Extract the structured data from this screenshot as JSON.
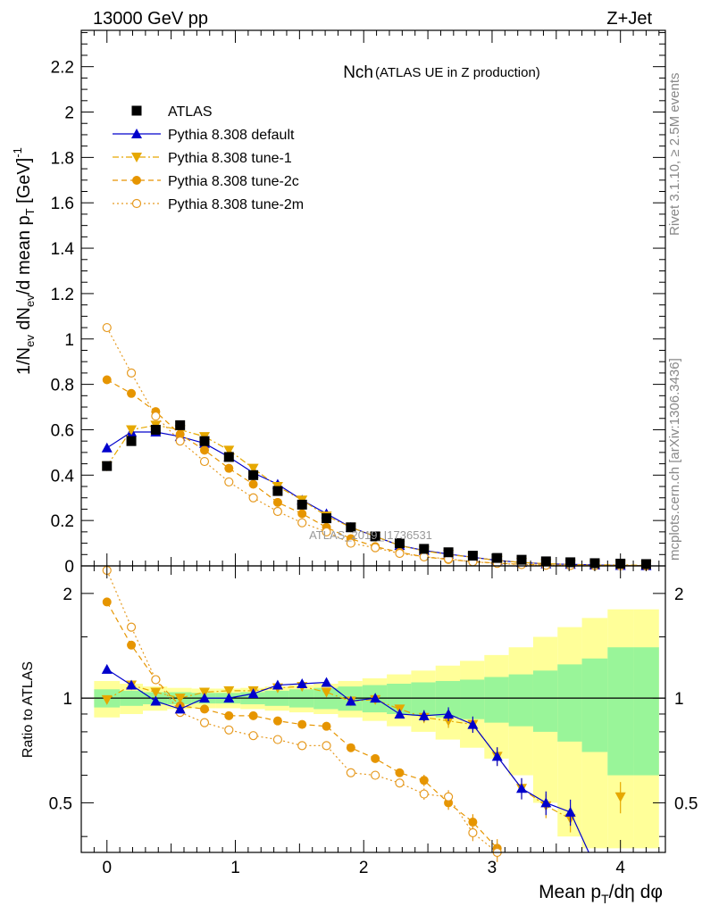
{
  "header": {
    "energy_label": "13000 GeV pp",
    "process_label": "Z+Jet"
  },
  "side_labels": {
    "rivet": "Rivet 3.1.10, ≥ 2.5M events",
    "mcplots": "mcplots.cern.ch [arXiv:1306.3436]"
  },
  "watermark": "ATLAS_2019_I1736531",
  "colors": {
    "atlas": "#000000",
    "default": "#0000cc",
    "tune1": "#e6a800",
    "tune2c": "#e69500",
    "tune2m": "#e69a20",
    "band_inner": "#99f599",
    "band_outer": "#ffff99"
  },
  "chart_data": [
    {
      "type": "scatter",
      "title": "Nch",
      "subtitle": "(ATLAS UE in Z production)",
      "ylabel": "1/N_ev dN_ev/d mean p_T [GeV]^-1",
      "xlim": [
        -0.2,
        4.35
      ],
      "ylim": [
        0,
        2.36
      ],
      "yticks": [
        0,
        0.2,
        0.4,
        0.6,
        0.8,
        1,
        1.2,
        1.4,
        1.6,
        1.8,
        2,
        2.2
      ],
      "ytick_labels": [
        "0",
        "0.2",
        "0.4",
        "0.6",
        "0.8",
        "1",
        "1.2",
        "1.4",
        "1.6",
        "1.8",
        "2",
        "2.2"
      ],
      "legend_position": "top-left",
      "x": [
        0,
        0.19,
        0.38,
        0.57,
        0.76,
        0.95,
        1.14,
        1.33,
        1.52,
        1.71,
        1.9,
        2.09,
        2.28,
        2.47,
        2.66,
        2.85,
        3.04,
        3.23,
        3.42,
        3.61,
        3.8,
        4.0,
        4.2
      ],
      "series": [
        {
          "name": "ATLAS",
          "marker": "square",
          "values": [
            0.44,
            0.55,
            0.6,
            0.62,
            0.55,
            0.48,
            0.4,
            0.33,
            0.27,
            0.21,
            0.17,
            0.13,
            0.1,
            0.075,
            0.06,
            0.045,
            0.035,
            0.027,
            0.02,
            0.016,
            0.012,
            0.01,
            0.008
          ]
        },
        {
          "name": "Pythia 8.308 default",
          "marker": "triangle-up",
          "line": "solid",
          "values": [
            0.52,
            0.59,
            0.59,
            0.57,
            0.54,
            0.48,
            0.41,
            0.36,
            0.29,
            0.23,
            0.17,
            0.13,
            0.09,
            0.068,
            0.052,
            0.038,
            0.024,
            0.015,
            0.009,
            0.007,
            0.004,
            0.002,
            0.001
          ]
        },
        {
          "name": "Pythia 8.308 tune-1",
          "marker": "triangle-down",
          "line": "dashdot",
          "values": [
            0.44,
            0.6,
            0.62,
            0.6,
            0.57,
            0.51,
            0.43,
            0.35,
            0.29,
            0.22,
            0.17,
            0.13,
            0.09,
            0.066,
            0.05,
            0.038,
            0.024,
            0.015,
            0.01,
            0.006,
            0.004,
            0.005,
            0.002
          ]
        },
        {
          "name": "Pythia 8.308 tune-2c",
          "marker": "circle",
          "line": "dashed",
          "values": [
            0.82,
            0.76,
            0.68,
            0.58,
            0.51,
            0.43,
            0.36,
            0.28,
            0.23,
            0.17,
            0.12,
            0.085,
            0.06,
            0.04,
            0.028,
            0.019,
            0.012,
            0.007,
            0.004,
            0.002,
            0.001,
            0.001,
            0.0005
          ]
        },
        {
          "name": "Pythia 8.308 tune-2m",
          "marker": "open-circle",
          "line": "dotted",
          "values": [
            1.05,
            0.85,
            0.66,
            0.55,
            0.46,
            0.37,
            0.3,
            0.24,
            0.19,
            0.15,
            0.1,
            0.08,
            0.055,
            0.04,
            0.031,
            0.018,
            0.011,
            0.006,
            0.003,
            0.002,
            0.001,
            0.001,
            0.0005
          ]
        }
      ]
    },
    {
      "type": "scatter",
      "ylabel": "Ratio to ATLAS",
      "xlabel": "Mean p_T/dη dφ",
      "xlim": [
        -0.2,
        4.35
      ],
      "ylim": [
        0.36,
        2.4
      ],
      "log_y": true,
      "yticks": [
        0.5,
        1,
        2
      ],
      "ytick_labels": [
        "0.5",
        "1",
        "2"
      ],
      "xticks": [
        0,
        1,
        2,
        3,
        4
      ],
      "xtick_labels": [
        "0",
        "1",
        "2",
        "3",
        "4"
      ],
      "x": [
        0,
        0.19,
        0.38,
        0.57,
        0.76,
        0.95,
        1.14,
        1.33,
        1.52,
        1.71,
        1.9,
        2.09,
        2.28,
        2.47,
        2.66,
        2.85,
        3.04,
        3.23,
        3.42,
        3.61,
        3.8,
        4.0,
        4.2
      ],
      "band_edges": [
        -0.1,
        0.1,
        0.28,
        0.47,
        0.66,
        0.85,
        1.04,
        1.23,
        1.42,
        1.61,
        1.8,
        1.99,
        2.18,
        2.37,
        2.56,
        2.75,
        2.94,
        3.13,
        3.32,
        3.51,
        3.7,
        3.9,
        4.1,
        4.3
      ],
      "band_inner": [
        0.06,
        0.05,
        0.04,
        0.04,
        0.035,
        0.035,
        0.04,
        0.05,
        0.06,
        0.07,
        0.08,
        0.09,
        0.1,
        0.11,
        0.12,
        0.13,
        0.15,
        0.17,
        0.2,
        0.25,
        0.3,
        0.4,
        0.4
      ],
      "band_outer": [
        0.12,
        0.1,
        0.08,
        0.07,
        0.065,
        0.065,
        0.07,
        0.08,
        0.09,
        0.1,
        0.12,
        0.14,
        0.17,
        0.2,
        0.24,
        0.28,
        0.33,
        0.4,
        0.5,
        0.6,
        0.7,
        0.8,
        0.8
      ],
      "series": [
        {
          "name": "Pythia 8.308 default",
          "values": [
            1.21,
            1.09,
            0.98,
            0.93,
            1.0,
            1.0,
            1.03,
            1.09,
            1.1,
            1.11,
            0.98,
            1.0,
            0.9,
            0.89,
            0.9,
            0.84,
            0.68,
            0.55,
            0.5,
            0.47,
            0.33,
            null,
            null
          ]
        },
        {
          "name": "Pythia 8.308 tune-1",
          "values": [
            0.99,
            1.09,
            1.04,
            1.0,
            1.04,
            1.05,
            1.05,
            1.07,
            1.08,
            1.04,
            0.98,
            0.99,
            0.93,
            0.88,
            0.86,
            0.84,
            0.68,
            0.55,
            0.49,
            0.45,
            null,
            0.52,
            null
          ]
        },
        {
          "name": "Pythia 8.308 tune-2c",
          "values": [
            1.89,
            1.42,
            1.13,
            0.95,
            0.93,
            0.89,
            0.89,
            0.86,
            0.84,
            0.83,
            0.72,
            0.67,
            0.61,
            0.58,
            0.5,
            0.44,
            0.37,
            null,
            null,
            null,
            null,
            null,
            null
          ]
        },
        {
          "name": "Pythia 8.308 tune-2m",
          "values": [
            2.33,
            1.6,
            1.13,
            0.91,
            0.85,
            0.81,
            0.78,
            0.76,
            0.73,
            0.73,
            0.61,
            0.6,
            0.57,
            0.53,
            0.52,
            0.41,
            0.36,
            null,
            null,
            null,
            null,
            null,
            null
          ]
        }
      ]
    }
  ]
}
